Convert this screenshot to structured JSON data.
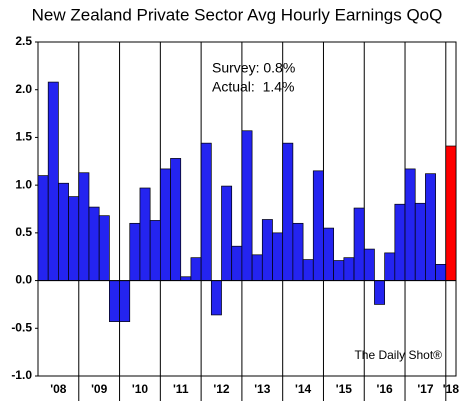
{
  "chart_data": {
    "type": "bar",
    "title": "New Zealand Private Sector Avg Hourly Earnings QoQ",
    "annotations": [
      "Survey: 0.8%",
      "Actual:  1.4%"
    ],
    "source": "The Daily Shot®",
    "groups": [
      "'08",
      "'09",
      "'10",
      "'11",
      "'12",
      "'13",
      "'14",
      "'15",
      "'16",
      "'17",
      "'18"
    ],
    "values": [
      1.1,
      2.08,
      1.02,
      0.88,
      1.13,
      0.77,
      0.68,
      -0.43,
      -0.43,
      0.6,
      0.97,
      0.63,
      1.17,
      1.28,
      0.04,
      0.24,
      1.44,
      -0.36,
      0.99,
      0.36,
      1.57,
      0.27,
      0.64,
      0.5,
      1.44,
      0.6,
      0.22,
      1.15,
      0.55,
      0.21,
      0.24,
      0.76,
      0.33,
      -0.25,
      0.29,
      0.8,
      1.17,
      0.81,
      1.12,
      0.17,
      1.41
    ],
    "color": "#2424f0",
    "highlight_color": "#ff0000",
    "ylim": [
      -1.0,
      2.5
    ],
    "yticks": [
      {
        "value": -1.0,
        "label": "-1.0"
      },
      -0.5,
      {
        "value": 0.0,
        "label": "0.0"
      },
      0.5,
      {
        "value": 1.0,
        "label": "1.0"
      },
      1.5,
      {
        "value": 2.0,
        "label": "2.0"
      },
      2.5
    ]
  }
}
